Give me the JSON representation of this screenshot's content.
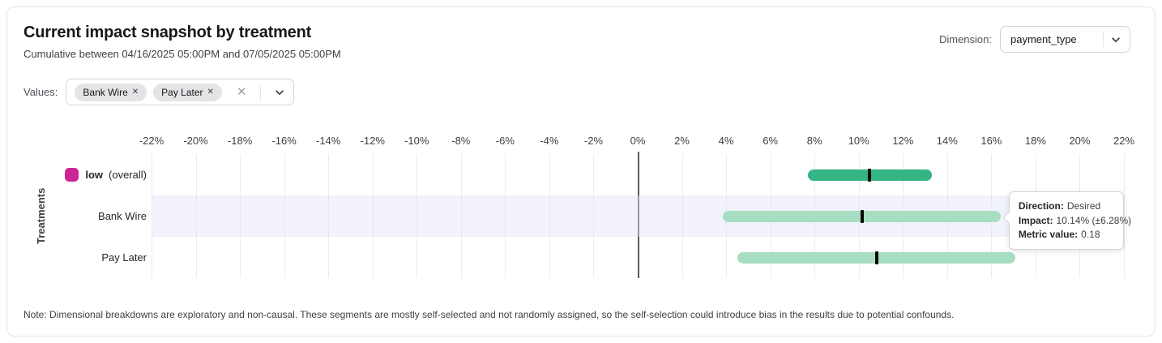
{
  "header": {
    "title": "Current impact snapshot by treatment",
    "subtitle": "Cumulative between 04/16/2025 05:00PM and 07/05/2025 05:00PM",
    "dimension_label": "Dimension:",
    "dimension_value": "payment_type"
  },
  "values_selector": {
    "label": "Values:",
    "chips": [
      "Bank Wire",
      "Pay Later"
    ]
  },
  "chart_data": {
    "type": "interval_bar",
    "title": "Current impact snapshot by treatment",
    "xlabel": "",
    "ylabel": "Treatments",
    "x_unit": "%",
    "xlim": [
      -22,
      22
    ],
    "ticks": [
      -22,
      -20,
      -18,
      -16,
      -14,
      -12,
      -10,
      -8,
      -6,
      -4,
      -2,
      0,
      2,
      4,
      6,
      8,
      10,
      12,
      14,
      16,
      18,
      20,
      22
    ],
    "grid": true,
    "zero_line": true,
    "rows": [
      {
        "label": "low",
        "label_note": "(overall)",
        "legend_swatch_color": "#ce2594",
        "bar_color": "#35b584",
        "impact_center": 10.5,
        "impact_low": 7.7,
        "impact_high": 13.3,
        "highlighted": false
      },
      {
        "label": "Bank Wire",
        "label_note": "",
        "legend_swatch_color": null,
        "bar_color": "#a7dec2",
        "impact_center": 10.14,
        "impact_low": 3.86,
        "impact_high": 16.42,
        "highlighted": true
      },
      {
        "label": "Pay Later",
        "label_note": "",
        "legend_swatch_color": null,
        "bar_color": "#a7dec2",
        "impact_center": 10.8,
        "impact_low": 4.5,
        "impact_high": 17.1,
        "highlighted": false
      }
    ]
  },
  "tooltip": {
    "anchor_row": "Bank Wire",
    "rows": [
      {
        "label": "Direction:",
        "value": "Desired"
      },
      {
        "label": "Impact:",
        "value": "10.14% (±6.28%)"
      },
      {
        "label": "Metric value:",
        "value": "0.18"
      }
    ]
  },
  "note": "Note: Dimensional breakdowns are exploratory and non-causal. These segments are mostly self-selected and not randomly assigned, so the self-selection could introduce bias in the results due to potential confounds.",
  "colors": {
    "overall_bar": "#35b584",
    "segment_bar": "#a7dec2",
    "legend_swatch": "#ce2594",
    "highlight_band": "#eef0fb",
    "zero_line": "#5b5b63",
    "gridline": "#ececec",
    "marker": "#0a0a0a",
    "card_border": "#e4e4e7"
  }
}
